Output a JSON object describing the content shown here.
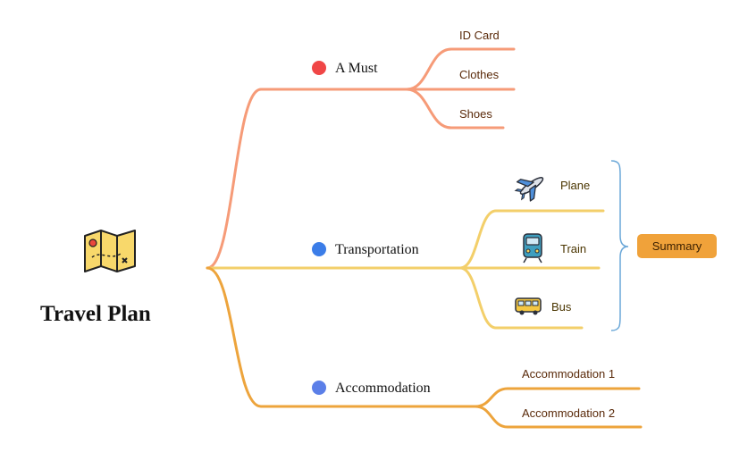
{
  "root": {
    "title": "Travel Plan",
    "icon": "map-icon"
  },
  "branches": [
    {
      "label": "A Must",
      "dot_color": "#f04646",
      "line_color": "#f69b78",
      "children": [
        {
          "label": "ID Card"
        },
        {
          "label": "Clothes"
        },
        {
          "label": "Shoes"
        }
      ]
    },
    {
      "label": "Transportation",
      "dot_color": "#3b7de8",
      "line_color": "#f3cf6a",
      "children": [
        {
          "label": "Plane",
          "icon": "plane-icon"
        },
        {
          "label": "Train",
          "icon": "train-icon"
        },
        {
          "label": "Bus",
          "icon": "bus-icon"
        }
      ]
    },
    {
      "label": "Accommodation",
      "dot_color": "#5b7fe8",
      "line_color": "#eda43c",
      "children": [
        {
          "label": "Accommodation 1"
        },
        {
          "label": "Accommodation 2"
        }
      ]
    }
  ],
  "summary": {
    "label": "Summary",
    "color": "#f0a23a",
    "bracket_color": "#6aa7d8"
  },
  "colors": {
    "leaf_text": "#5a2a0a",
    "transport_text": "#4a3500"
  }
}
